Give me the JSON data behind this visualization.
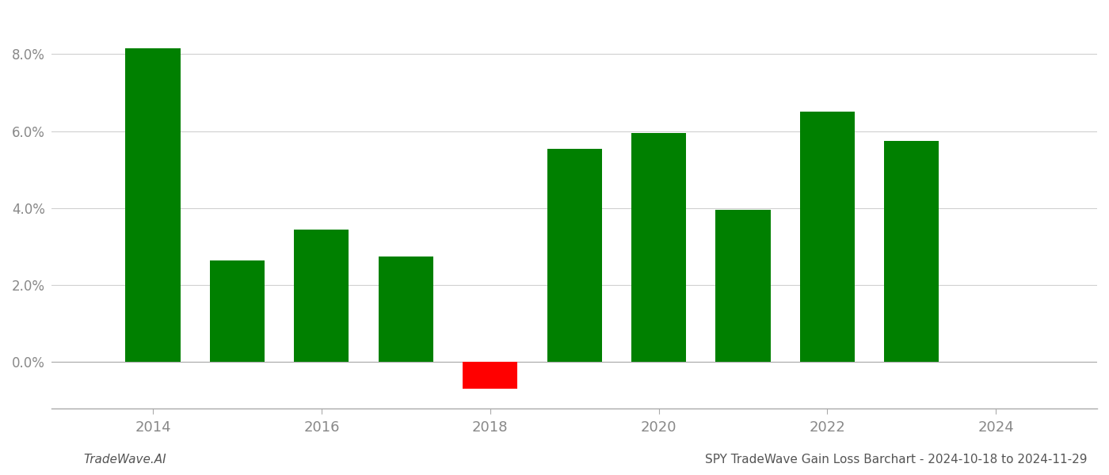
{
  "years": [
    2014,
    2015,
    2016,
    2017,
    2018,
    2019,
    2020,
    2021,
    2022,
    2023
  ],
  "values": [
    0.0815,
    0.0265,
    0.0345,
    0.0275,
    -0.007,
    0.0555,
    0.0595,
    0.0395,
    0.065,
    0.0575
  ],
  "bar_colors_positive": "#008000",
  "bar_colors_negative": "#ff0000",
  "ylim_min": -0.012,
  "ylim_max": 0.091,
  "ytick_values": [
    0.0,
    0.02,
    0.04,
    0.06,
    0.08
  ],
  "xtick_values": [
    2014,
    2016,
    2018,
    2020,
    2022,
    2024
  ],
  "xlim_min": 2012.8,
  "xlim_max": 2025.2,
  "footer_left": "TradeWave.AI",
  "footer_right": "SPY TradeWave Gain Loss Barchart - 2024-10-18 to 2024-11-29",
  "background_color": "#ffffff",
  "grid_color": "#d0d0d0",
  "bar_width": 0.65
}
